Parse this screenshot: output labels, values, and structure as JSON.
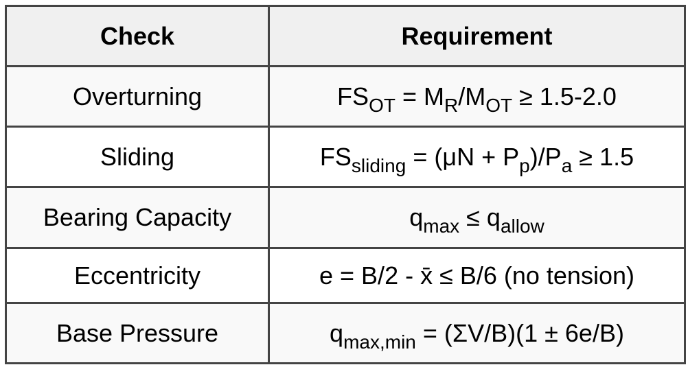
{
  "headers": [
    "Check",
    "Requirement"
  ],
  "rows": [
    {
      "check": "Overturning",
      "requirement": [
        {
          "t": "FS"
        },
        {
          "sub": "OT"
        },
        {
          "t": " = M"
        },
        {
          "sub": "R"
        },
        {
          "t": "/M"
        },
        {
          "sub": "OT"
        },
        {
          "t": " ≥ 1.5-2.0"
        }
      ]
    },
    {
      "check": "Sliding",
      "requirement": [
        {
          "t": "FS"
        },
        {
          "sub": "sliding"
        },
        {
          "t": " = (μN + P"
        },
        {
          "sub": "p"
        },
        {
          "t": ")/P"
        },
        {
          "sub": "a"
        },
        {
          "t": " ≥ 1.5"
        }
      ]
    },
    {
      "check": "Bearing Capacity",
      "requirement": [
        {
          "t": "q"
        },
        {
          "sub": "max"
        },
        {
          "t": " ≤ q"
        },
        {
          "sub": "allow"
        }
      ]
    },
    {
      "check": "Eccentricity",
      "requirement": [
        {
          "t": "e = B/2 - x̄ ≤ B/6 (no tension)"
        }
      ]
    },
    {
      "check": "Base Pressure",
      "requirement": [
        {
          "t": "q"
        },
        {
          "sub": "max,min"
        },
        {
          "t": " = (ΣV/B)(1 ± 6e/B)"
        }
      ]
    }
  ],
  "colors": {
    "border": "#444444",
    "header_bg": "#f0f0f0",
    "stripe_bg": "#f9f9f9"
  }
}
